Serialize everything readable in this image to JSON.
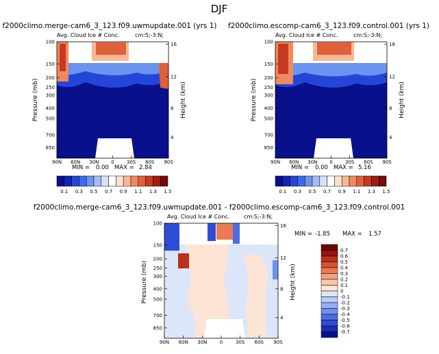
{
  "figure_title": "DJF",
  "colors": {
    "abs_levels": [
      "#08108c",
      "#1324b5",
      "#2446d8",
      "#3d6be8",
      "#6b94f0",
      "#a3bdf5",
      "#d4e2fa",
      "#ffffff",
      "#fde0cf",
      "#f7b994",
      "#ef8a5e",
      "#e0603a",
      "#c63a22",
      "#a01d14",
      "#780a0a"
    ],
    "diff_levels": [
      "#08108c",
      "#1a2db8",
      "#2e4cd6",
      "#4a6ee6",
      "#6f90ef",
      "#94b0f4",
      "#b8cdf8",
      "#dbe6fb",
      "#fde4d4",
      "#fac7ab",
      "#f4a280",
      "#ea7a56",
      "#d85233",
      "#bc2f1c",
      "#961510",
      "#6e0606"
    ]
  },
  "chart_data": [
    {
      "type": "heatmap",
      "title": "f2000climo.merge-cam6_3_123.f09.uwmupdate.001 (yrs 1)",
      "subtitle_left": "Avg. Cloud Ice # Conc.",
      "subtitle_right": "cm:S;-3:N;",
      "ylabel": "Pressure (mb)",
      "ylabel_right": "Height (km)",
      "x_ticks": [
        "90N",
        "60N",
        "30N",
        "0",
        "30S",
        "60S",
        "90S"
      ],
      "y_ticks": [
        "100",
        "150",
        "200",
        "250",
        "300",
        "400",
        "500",
        "700",
        "850"
      ],
      "y_ticks_right": [
        "16",
        "12",
        "8",
        "4"
      ],
      "min_label": "MIN =",
      "min_value": "0.00",
      "max_label": "MAX =",
      "max_value": "2.84",
      "colorbar_labels": [
        "0.1",
        "0.3",
        "0.5",
        "0.7",
        "0.9",
        "1.1",
        "1.3",
        "1.5"
      ]
    },
    {
      "type": "heatmap",
      "title": "f2000climo.escomp-cam6_3_123.f09.control.001 (yrs 1)",
      "subtitle_left": "Avg. Cloud Ice # Conc.",
      "subtitle_right": "cm:S;-3:N;",
      "ylabel": "Pressure (mb)",
      "ylabel_right": "Height (km)",
      "x_ticks": [
        "90N",
        "60N",
        "30N",
        "0",
        "30S",
        "60S",
        "90S"
      ],
      "y_ticks": [
        "100",
        "150",
        "200",
        "250",
        "300",
        "400",
        "500",
        "700",
        "850"
      ],
      "y_ticks_right": [
        "16",
        "12",
        "8",
        "4"
      ],
      "min_label": "MIN =",
      "min_value": "0.00",
      "max_label": "MAX =",
      "max_value": "5.16",
      "colorbar_labels": [
        "0.1",
        "0.3",
        "0.5",
        "0.7",
        "0.9",
        "1.1",
        "1.3",
        "1.5"
      ]
    },
    {
      "type": "heatmap",
      "title": "f2000climo.merge-cam6_3_123.f09.uwmupdate.001 - f2000climo.escomp-cam6_3_123.f09.control.001",
      "subtitle_left": "Avg. Cloud Ice # Conc.",
      "subtitle_right": "cm:S;-3:N;",
      "ylabel": "Pressure (mb)",
      "ylabel_right": "Height (km)",
      "x_ticks": [
        "90N",
        "60N",
        "30N",
        "0",
        "30S",
        "60S",
        "90S"
      ],
      "y_ticks": [
        "100",
        "150",
        "200",
        "250",
        "300",
        "400",
        "500",
        "700",
        "850"
      ],
      "y_ticks_right": [
        "16",
        "12",
        "8",
        "4"
      ],
      "min_label": "MIN =",
      "min_value": "-1.85",
      "max_label": "MAX =",
      "max_value": "1.57",
      "colorbar_labels": [
        "0.7",
        "0.6",
        "0.5",
        "0.4",
        "0.3",
        "0.2",
        "0.1",
        "0",
        "-0.1",
        "-0.2",
        "-0.3",
        "-0.4",
        "-0.5",
        "-0.6",
        "-0.7"
      ]
    }
  ]
}
